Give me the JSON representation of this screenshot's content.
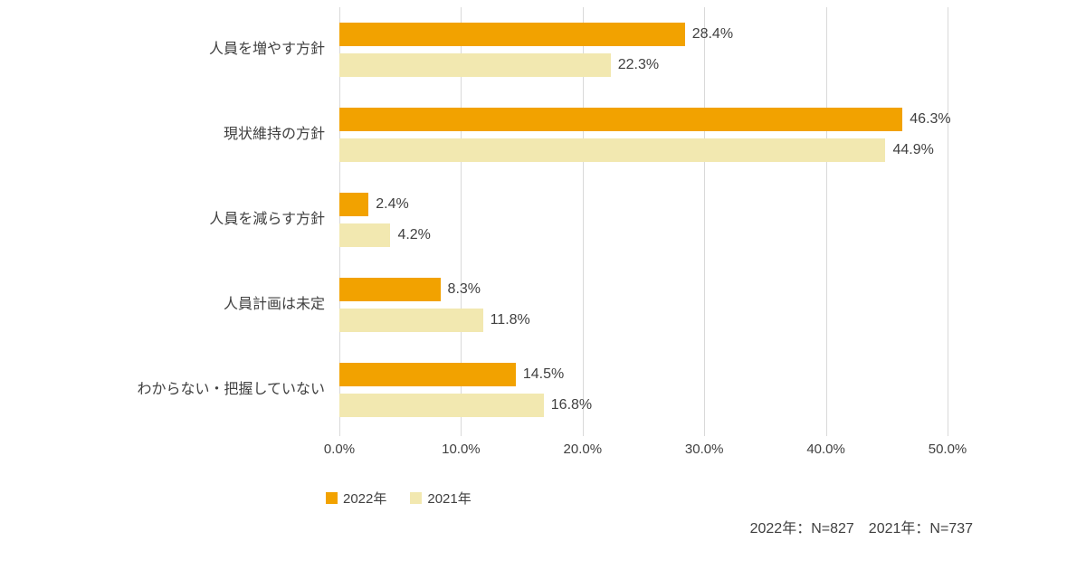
{
  "chart_data": {
    "type": "bar",
    "orientation": "horizontal",
    "title": "",
    "categories": [
      "人員を増やす方針",
      "現状維持の方針",
      "人員を減らす方針",
      "人員計画は未定",
      "わからない・把握していない"
    ],
    "series": [
      {
        "name": "2022年",
        "color": "#f2a200",
        "values": [
          28.4,
          46.3,
          2.4,
          8.3,
          14.5
        ]
      },
      {
        "name": "2021年",
        "color": "#f2e8b0",
        "values": [
          22.3,
          44.9,
          4.2,
          11.8,
          16.8
        ]
      }
    ],
    "value_suffix": "%",
    "xlim": [
      0,
      50
    ],
    "x_ticks": [
      "0.0%",
      "10.0%",
      "20.0%",
      "30.0%",
      "40.0%",
      "50.0%"
    ],
    "grid": true,
    "legend_position": "bottom-left",
    "gridline_color": "#d9d9d9"
  },
  "footer": {
    "note": "2022年：N=827　2021年：N=737"
  }
}
